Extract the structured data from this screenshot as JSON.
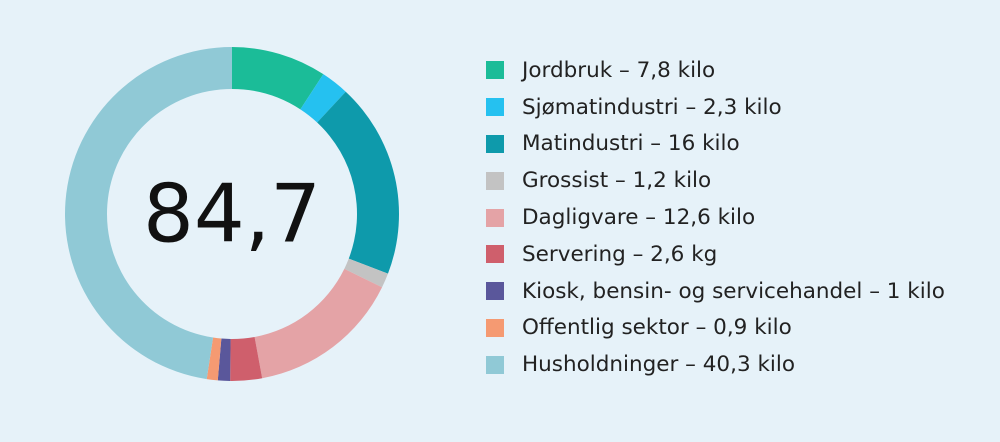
{
  "chart_data": {
    "type": "pie",
    "variant": "donut",
    "center_label": "84,7",
    "start_angle": "top",
    "direction": "clockwise",
    "series": [
      {
        "label": "Jordbruk – 7,8 kilo",
        "value": 7.8,
        "color": "#1bbc98"
      },
      {
        "label": "Sjømatindustri – 2,3 kilo",
        "value": 2.3,
        "color": "#25c1f0"
      },
      {
        "label": "Matindustri – 16 kilo",
        "value": 16,
        "color": "#0e9aab"
      },
      {
        "label": "Grossist – 1,2 kilo",
        "value": 1.2,
        "color": "#c3c3c3"
      },
      {
        "label": "Dagligvare – 12,6 kilo",
        "value": 12.6,
        "color": "#e4a3a6"
      },
      {
        "label": "Servering – 2,6 kg",
        "value": 2.6,
        "color": "#cf5f6c"
      },
      {
        "label": "Kiosk, bensin- og servicehandel – 1 kilo",
        "value": 1,
        "color": "#5a579b"
      },
      {
        "label": "Offentlig sektor – 0,9 kilo",
        "value": 0.9,
        "color": "#f59a72"
      },
      {
        "label": "Husholdninger – 40,3 kilo",
        "value": 40.3,
        "color": "#90c9d6"
      }
    ]
  }
}
